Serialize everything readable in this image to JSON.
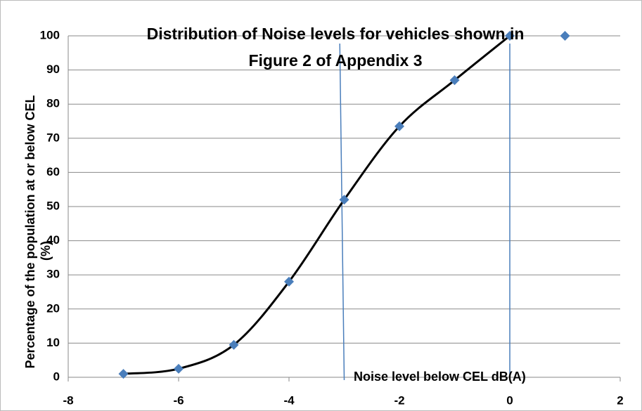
{
  "chart_data": {
    "type": "line",
    "title": [
      "Distribution of Noise levels for vehicles shown in",
      "Figure 2 of Appendix 3"
    ],
    "y_label": [
      "Percentage of the population at or below  CEL",
      "(%)"
    ],
    "annotation": "Noise level below CEL dB(A)",
    "series": [
      {
        "color": "#4a7ebb",
        "line_color": "#000000",
        "line": true,
        "x": [
          -7,
          -6,
          -5,
          -4,
          -3,
          -2,
          -1,
          0
        ],
        "values": [
          1,
          2.5,
          9.5,
          28,
          52,
          73.5,
          87,
          100
        ]
      },
      {
        "color": "#4a7ebb",
        "line": false,
        "x": [
          1
        ],
        "values": [
          100
        ]
      }
    ],
    "reference_lines": [
      {
        "x_top": -3.08,
        "x_bottom": -3.0,
        "color": "#4a7ebb"
      },
      {
        "x_top": 0,
        "x_bottom": 0,
        "color": "#4a7ebb"
      }
    ],
    "xlim": [
      -8,
      2
    ],
    "xticks": [
      -8,
      -6,
      -4,
      -2,
      0,
      2
    ],
    "ylim": [
      0,
      100
    ],
    "yticks": [
      0,
      10,
      20,
      30,
      40,
      50,
      60,
      70,
      80,
      90,
      100
    ],
    "grid": true
  }
}
